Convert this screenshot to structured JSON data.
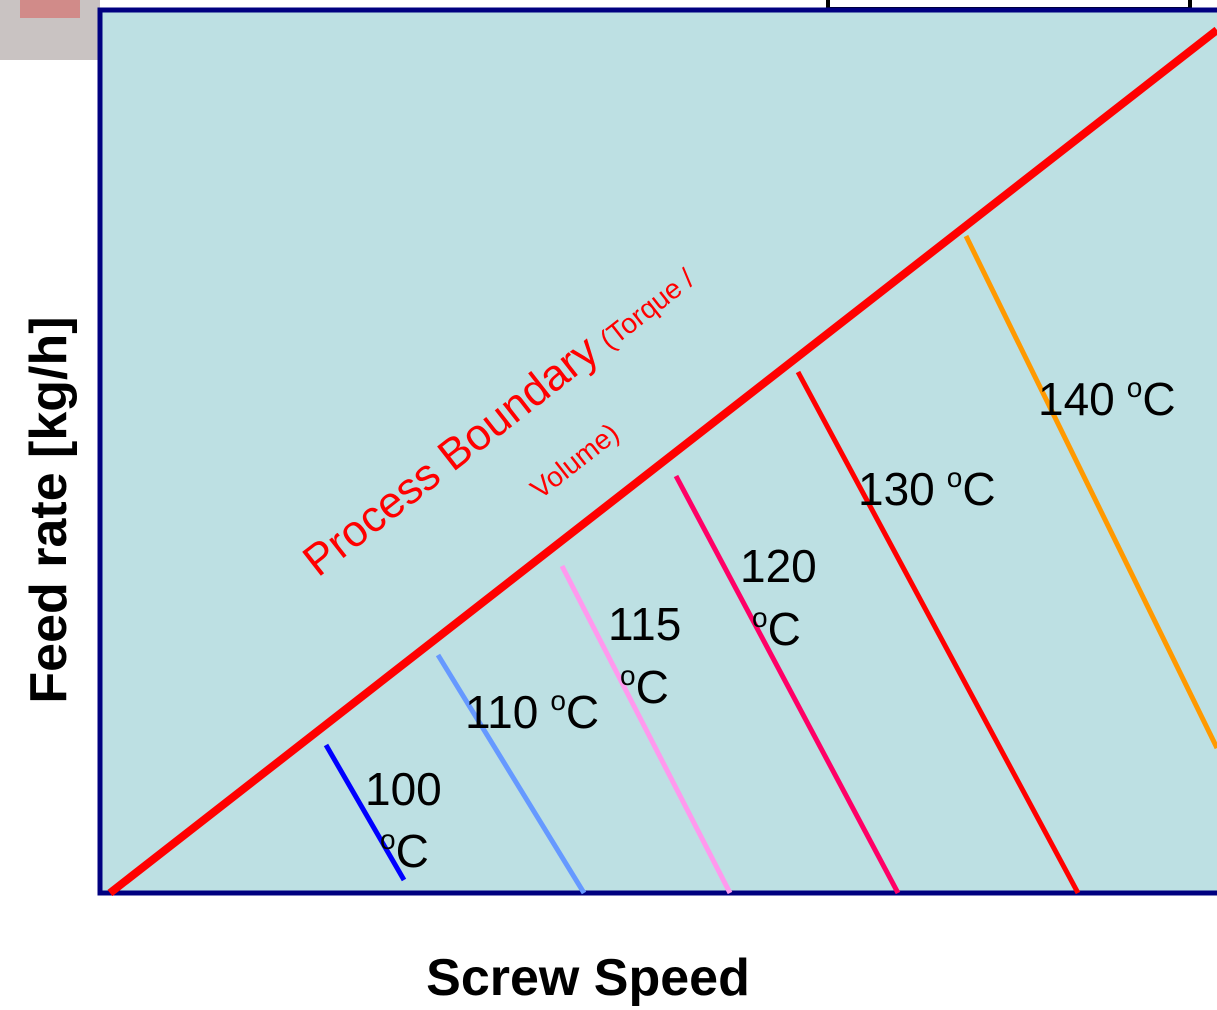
{
  "diagram": {
    "y_axis_label": "Feed rate [kg/h]",
    "x_axis_label": "Screw Speed",
    "boundary": {
      "label": "Process Boundary",
      "note_line1": "(Torque /",
      "note_line2": "Volume)"
    },
    "isotherms": [
      {
        "temp": "100",
        "sup": "o",
        "unit": "C"
      },
      {
        "temp": "110",
        "sup": "o",
        "unit": "C"
      },
      {
        "temp": "115",
        "sup": "o",
        "unit": "C"
      },
      {
        "temp": "120",
        "sup": "o",
        "unit": "C"
      },
      {
        "temp": "130",
        "sup": "o",
        "unit": "C"
      },
      {
        "temp": "140",
        "sup": "o",
        "unit": "C"
      }
    ]
  }
}
